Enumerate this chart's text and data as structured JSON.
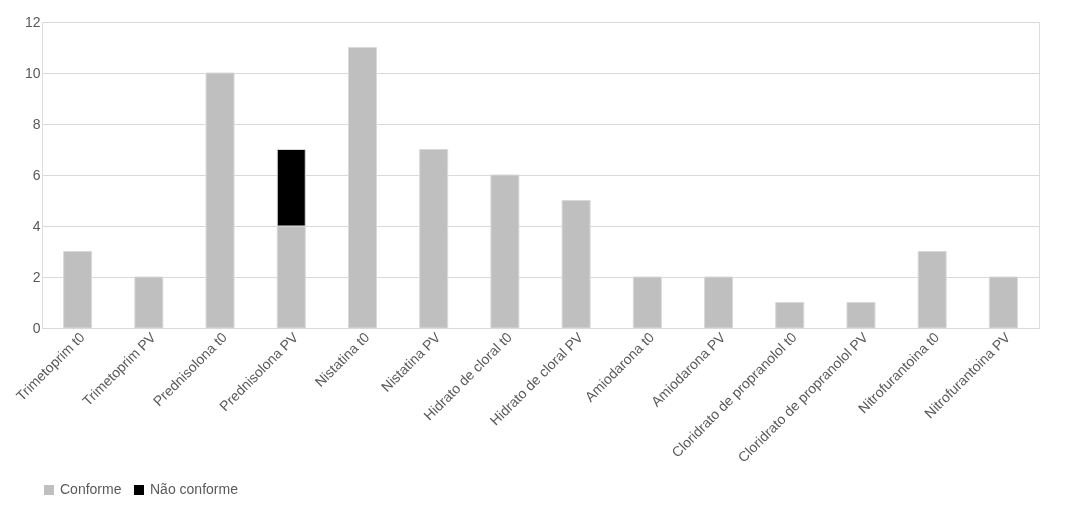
{
  "chart_data": {
    "type": "bar",
    "stacked": true,
    "categories": [
      "Trimetoprim t0",
      "Trimetoprim PV",
      "Prednisolona t0",
      "Prednisolona PV",
      "Nistatina t0",
      "Nistatina PV",
      "Hidrato de cloral t0",
      "Hidrato de cloral PV",
      "Amiodarona t0",
      "Amiodarona PV",
      "Cloridrato de propranolol t0",
      "Cloridrato de propranolol PV",
      "Nitrofurantoina t0",
      "Nitrofurantoina PV"
    ],
    "series": [
      {
        "name": "Conforme",
        "color": "#bfbfbf",
        "values": [
          3,
          2,
          10,
          4,
          11,
          7,
          6,
          5,
          2,
          2,
          1,
          1,
          3,
          2
        ]
      },
      {
        "name": "Não conforme",
        "color": "#000000",
        "values": [
          null,
          null,
          null,
          3,
          null,
          null,
          null,
          null,
          null,
          null,
          null,
          null,
          null,
          null
        ]
      }
    ],
    "ylim": [
      0,
      12
    ],
    "yticks": [
      0,
      2,
      4,
      6,
      8,
      10,
      12
    ],
    "grid": "y",
    "legend": "bottom"
  }
}
